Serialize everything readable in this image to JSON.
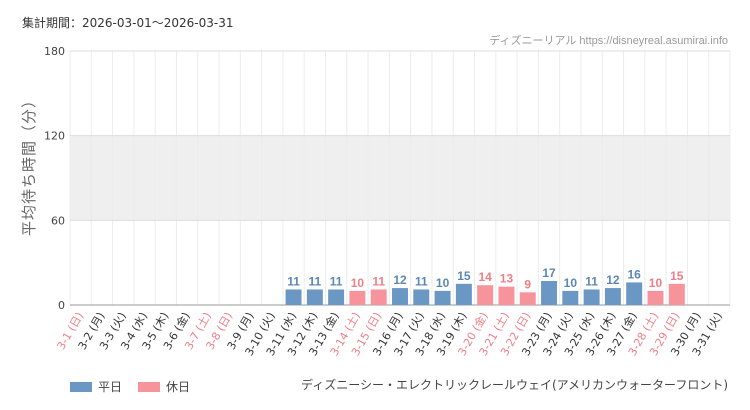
{
  "header": {
    "period_label": "集計期間：2026-03-01〜2026-03-31",
    "source": "ディズニーリアル https://disneyreal.asumirai.info"
  },
  "chart_data": {
    "type": "bar",
    "ylabel": "平均待ち時間（分）",
    "ylim": [
      0,
      180
    ],
    "yticks": [
      0,
      60,
      120,
      180
    ],
    "grid": true,
    "legend_position": "bottom-left",
    "attraction": "ディズニーシー・エレクトリックレールウェイ(アメリカンウォーターフロント)",
    "categories": [
      "3-1 (日)",
      "3-2 (月)",
      "3-3 (火)",
      "3-4 (水)",
      "3-5 (木)",
      "3-6 (金)",
      "3-7 (土)",
      "3-8 (日)",
      "3-9 (月)",
      "3-10 (火)",
      "3-11 (水)",
      "3-12 (木)",
      "3-13 (金)",
      "3-14 (土)",
      "3-15 (日)",
      "3-16 (月)",
      "3-17 (火)",
      "3-18 (水)",
      "3-19 (木)",
      "3-20 (金)",
      "3-21 (土)",
      "3-22 (日)",
      "3-23 (月)",
      "3-24 (火)",
      "3-25 (水)",
      "3-26 (木)",
      "3-27 (金)",
      "3-28 (土)",
      "3-29 (日)",
      "3-30 (月)",
      "3-31 (火)"
    ],
    "holiday": [
      true,
      false,
      false,
      false,
      false,
      false,
      true,
      true,
      false,
      false,
      false,
      false,
      false,
      true,
      true,
      false,
      false,
      false,
      false,
      true,
      true,
      true,
      false,
      false,
      false,
      false,
      false,
      true,
      true,
      false,
      false
    ],
    "values": [
      null,
      null,
      null,
      null,
      null,
      null,
      null,
      null,
      null,
      null,
      11,
      11,
      11,
      10,
      11,
      12,
      11,
      10,
      15,
      14,
      13,
      9,
      17,
      10,
      11,
      12,
      16,
      10,
      15,
      null,
      null
    ],
    "series": [
      {
        "name": "平日",
        "color": "#6a97c4"
      },
      {
        "name": "休日",
        "color": "#f7939b"
      }
    ],
    "colors": {
      "weekday_label": "#5b87b6",
      "holiday_label": "#ef7f86",
      "band": "#efefef",
      "grid": "#dddddd"
    }
  }
}
